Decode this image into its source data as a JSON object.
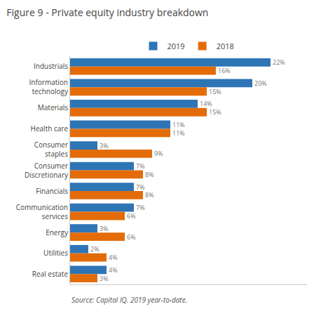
{
  "chart_data": {
    "type": "bar",
    "orientation": "horizontal",
    "title": "Figure 9 - Private equity industry breakdown",
    "annotations": [
      "Source: Capital IQ. 2019 year-to-date."
    ],
    "categories": [
      "Industrials",
      "Information\ntechnology",
      "Materials",
      "Health care",
      "Consumer\nstaples",
      "Consumer\nDiscretionary",
      "Financials",
      "Communication\nservices",
      "Energy",
      "Utilities",
      "Real estate"
    ],
    "series": [
      {
        "name": "2019",
        "color": "#2E75B6",
        "values": [
          22,
          20,
          14,
          11,
          3,
          7,
          7,
          7,
          3,
          2,
          4
        ],
        "value_labels": [
          "22%",
          "20%",
          "14%",
          "11%",
          "3%",
          "7%",
          "7%",
          "7%",
          "3%",
          "2%",
          "4%"
        ]
      },
      {
        "name": "2018",
        "color": "#E36C09",
        "values": [
          16,
          15,
          15,
          11,
          9,
          8,
          8,
          6,
          6,
          4,
          3
        ],
        "value_labels": [
          "16%",
          "15%",
          "15%",
          "11%",
          "9%",
          "8%",
          "8%",
          "6%",
          "6%",
          "4%",
          "3%"
        ]
      }
    ],
    "xlim": [
      0,
      26
    ],
    "xticks": [],
    "tick_labels": "y",
    "grid": false,
    "legend": "top",
    "data_labels": true
  }
}
